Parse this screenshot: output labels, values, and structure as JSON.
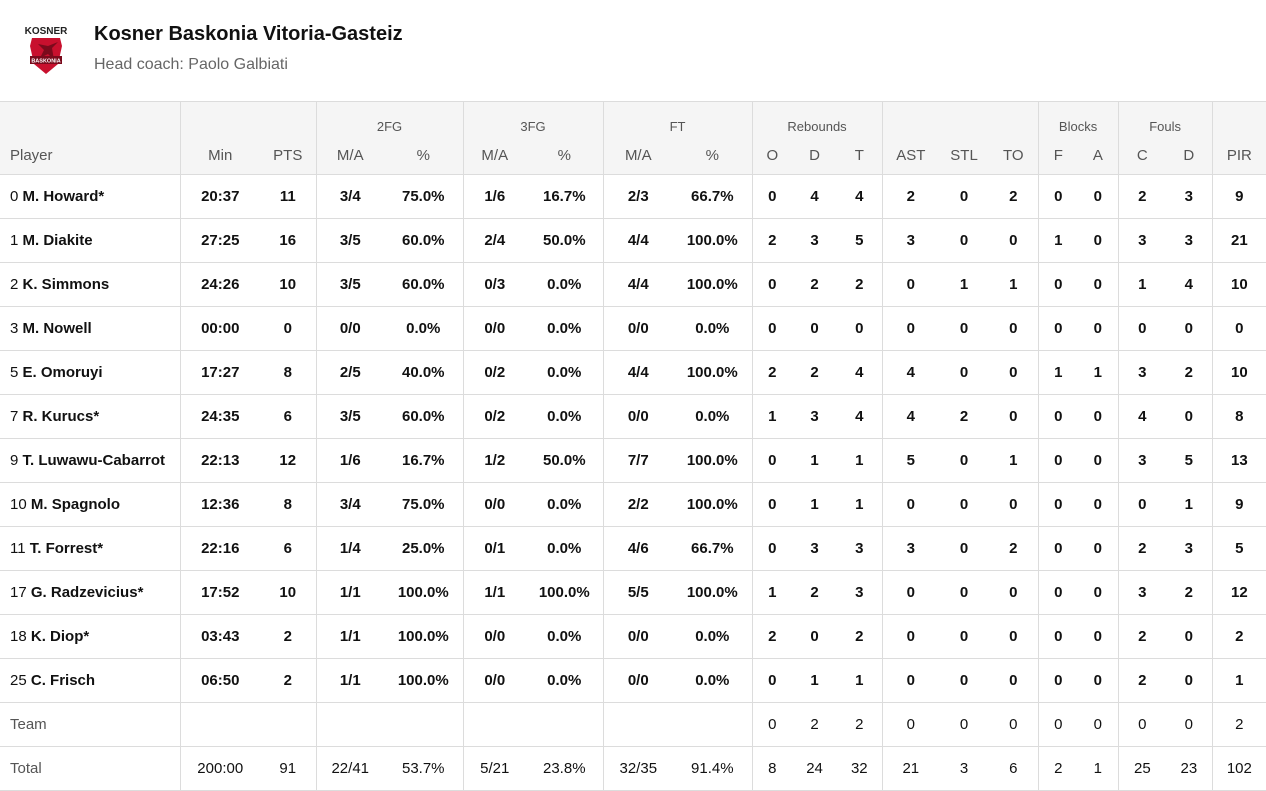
{
  "team": {
    "logo_text": "KOSNER",
    "logo_badge": "BASKONIA",
    "name": "Kosner Baskonia Vitoria-Gasteiz",
    "coach": "Head coach: Paolo Galbiati"
  },
  "colors": {
    "logo_red": "#c8102e",
    "header_bg": "#f5f5f5",
    "border": "#dcdcdc"
  },
  "groups": {
    "fg2": "2FG",
    "fg3": "3FG",
    "ft": "FT",
    "rebounds": "Rebounds",
    "blocks": "Blocks",
    "fouls": "Fouls"
  },
  "columns": {
    "player": "Player",
    "min": "Min",
    "pts": "PTS",
    "fg2_ma": "M/A",
    "fg2_pct": "%",
    "fg3_ma": "M/A",
    "fg3_pct": "%",
    "ft_ma": "M/A",
    "ft_pct": "%",
    "reb_o": "O",
    "reb_d": "D",
    "reb_t": "T",
    "ast": "AST",
    "stl": "STL",
    "to": "TO",
    "blk_f": "F",
    "blk_a": "A",
    "foul_c": "C",
    "foul_d": "D",
    "pir": "PIR"
  },
  "players": [
    {
      "number": "0",
      "name": "M. Howard*",
      "min": "20:37",
      "pts": "11",
      "fg2_ma": "3/4",
      "fg2_pct": "75.0%",
      "fg3_ma": "1/6",
      "fg3_pct": "16.7%",
      "ft_ma": "2/3",
      "ft_pct": "66.7%",
      "reb_o": "0",
      "reb_d": "4",
      "reb_t": "4",
      "ast": "2",
      "stl": "0",
      "to": "2",
      "blk_f": "0",
      "blk_a": "0",
      "foul_c": "2",
      "foul_d": "3",
      "pir": "9"
    },
    {
      "number": "1",
      "name": "M. Diakite",
      "min": "27:25",
      "pts": "16",
      "fg2_ma": "3/5",
      "fg2_pct": "60.0%",
      "fg3_ma": "2/4",
      "fg3_pct": "50.0%",
      "ft_ma": "4/4",
      "ft_pct": "100.0%",
      "reb_o": "2",
      "reb_d": "3",
      "reb_t": "5",
      "ast": "3",
      "stl": "0",
      "to": "0",
      "blk_f": "1",
      "blk_a": "0",
      "foul_c": "3",
      "foul_d": "3",
      "pir": "21"
    },
    {
      "number": "2",
      "name": "K. Simmons",
      "min": "24:26",
      "pts": "10",
      "fg2_ma": "3/5",
      "fg2_pct": "60.0%",
      "fg3_ma": "0/3",
      "fg3_pct": "0.0%",
      "ft_ma": "4/4",
      "ft_pct": "100.0%",
      "reb_o": "0",
      "reb_d": "2",
      "reb_t": "2",
      "ast": "0",
      "stl": "1",
      "to": "1",
      "blk_f": "0",
      "blk_a": "0",
      "foul_c": "1",
      "foul_d": "4",
      "pir": "10"
    },
    {
      "number": "3",
      "name": "M. Nowell",
      "min": "00:00",
      "pts": "0",
      "fg2_ma": "0/0",
      "fg2_pct": "0.0%",
      "fg3_ma": "0/0",
      "fg3_pct": "0.0%",
      "ft_ma": "0/0",
      "ft_pct": "0.0%",
      "reb_o": "0",
      "reb_d": "0",
      "reb_t": "0",
      "ast": "0",
      "stl": "0",
      "to": "0",
      "blk_f": "0",
      "blk_a": "0",
      "foul_c": "0",
      "foul_d": "0",
      "pir": "0"
    },
    {
      "number": "5",
      "name": "E. Omoruyi",
      "min": "17:27",
      "pts": "8",
      "fg2_ma": "2/5",
      "fg2_pct": "40.0%",
      "fg3_ma": "0/2",
      "fg3_pct": "0.0%",
      "ft_ma": "4/4",
      "ft_pct": "100.0%",
      "reb_o": "2",
      "reb_d": "2",
      "reb_t": "4",
      "ast": "4",
      "stl": "0",
      "to": "0",
      "blk_f": "1",
      "blk_a": "1",
      "foul_c": "3",
      "foul_d": "2",
      "pir": "10"
    },
    {
      "number": "7",
      "name": "R. Kurucs*",
      "min": "24:35",
      "pts": "6",
      "fg2_ma": "3/5",
      "fg2_pct": "60.0%",
      "fg3_ma": "0/2",
      "fg3_pct": "0.0%",
      "ft_ma": "0/0",
      "ft_pct": "0.0%",
      "reb_o": "1",
      "reb_d": "3",
      "reb_t": "4",
      "ast": "4",
      "stl": "2",
      "to": "0",
      "blk_f": "0",
      "blk_a": "0",
      "foul_c": "4",
      "foul_d": "0",
      "pir": "8"
    },
    {
      "number": "9",
      "name": "T. Luwawu-Cabarrot",
      "min": "22:13",
      "pts": "12",
      "fg2_ma": "1/6",
      "fg2_pct": "16.7%",
      "fg3_ma": "1/2",
      "fg3_pct": "50.0%",
      "ft_ma": "7/7",
      "ft_pct": "100.0%",
      "reb_o": "0",
      "reb_d": "1",
      "reb_t": "1",
      "ast": "5",
      "stl": "0",
      "to": "1",
      "blk_f": "0",
      "blk_a": "0",
      "foul_c": "3",
      "foul_d": "5",
      "pir": "13"
    },
    {
      "number": "10",
      "name": "M. Spagnolo",
      "min": "12:36",
      "pts": "8",
      "fg2_ma": "3/4",
      "fg2_pct": "75.0%",
      "fg3_ma": "0/0",
      "fg3_pct": "0.0%",
      "ft_ma": "2/2",
      "ft_pct": "100.0%",
      "reb_o": "0",
      "reb_d": "1",
      "reb_t": "1",
      "ast": "0",
      "stl": "0",
      "to": "0",
      "blk_f": "0",
      "blk_a": "0",
      "foul_c": "0",
      "foul_d": "1",
      "pir": "9"
    },
    {
      "number": "11",
      "name": "T. Forrest*",
      "min": "22:16",
      "pts": "6",
      "fg2_ma": "1/4",
      "fg2_pct": "25.0%",
      "fg3_ma": "0/1",
      "fg3_pct": "0.0%",
      "ft_ma": "4/6",
      "ft_pct": "66.7%",
      "reb_o": "0",
      "reb_d": "3",
      "reb_t": "3",
      "ast": "3",
      "stl": "0",
      "to": "2",
      "blk_f": "0",
      "blk_a": "0",
      "foul_c": "2",
      "foul_d": "3",
      "pir": "5"
    },
    {
      "number": "17",
      "name": "G. Radzevicius*",
      "min": "17:52",
      "pts": "10",
      "fg2_ma": "1/1",
      "fg2_pct": "100.0%",
      "fg3_ma": "1/1",
      "fg3_pct": "100.0%",
      "ft_ma": "5/5",
      "ft_pct": "100.0%",
      "reb_o": "1",
      "reb_d": "2",
      "reb_t": "3",
      "ast": "0",
      "stl": "0",
      "to": "0",
      "blk_f": "0",
      "blk_a": "0",
      "foul_c": "3",
      "foul_d": "2",
      "pir": "12"
    },
    {
      "number": "18",
      "name": "K. Diop*",
      "min": "03:43",
      "pts": "2",
      "fg2_ma": "1/1",
      "fg2_pct": "100.0%",
      "fg3_ma": "0/0",
      "fg3_pct": "0.0%",
      "ft_ma": "0/0",
      "ft_pct": "0.0%",
      "reb_o": "2",
      "reb_d": "0",
      "reb_t": "2",
      "ast": "0",
      "stl": "0",
      "to": "0",
      "blk_f": "0",
      "blk_a": "0",
      "foul_c": "2",
      "foul_d": "0",
      "pir": "2"
    },
    {
      "number": "25",
      "name": "C. Frisch",
      "min": "06:50",
      "pts": "2",
      "fg2_ma": "1/1",
      "fg2_pct": "100.0%",
      "fg3_ma": "0/0",
      "fg3_pct": "0.0%",
      "ft_ma": "0/0",
      "ft_pct": "0.0%",
      "reb_o": "0",
      "reb_d": "1",
      "reb_t": "1",
      "ast": "0",
      "stl": "0",
      "to": "0",
      "blk_f": "0",
      "blk_a": "0",
      "foul_c": "2",
      "foul_d": "0",
      "pir": "1"
    }
  ],
  "team_row": {
    "label": "Team",
    "min": "",
    "pts": "",
    "fg2_ma": "",
    "fg2_pct": "",
    "fg3_ma": "",
    "fg3_pct": "",
    "ft_ma": "",
    "ft_pct": "",
    "reb_o": "0",
    "reb_d": "2",
    "reb_t": "2",
    "ast": "0",
    "stl": "0",
    "to": "0",
    "blk_f": "0",
    "blk_a": "0",
    "foul_c": "0",
    "foul_d": "0",
    "pir": "2"
  },
  "total_row": {
    "label": "Total",
    "min": "200:00",
    "pts": "91",
    "fg2_ma": "22/41",
    "fg2_pct": "53.7%",
    "fg3_ma": "5/21",
    "fg3_pct": "23.8%",
    "ft_ma": "32/35",
    "ft_pct": "91.4%",
    "reb_o": "8",
    "reb_d": "24",
    "reb_t": "32",
    "ast": "21",
    "stl": "3",
    "to": "6",
    "blk_f": "2",
    "blk_a": "1",
    "foul_c": "25",
    "foul_d": "23",
    "pir": "102"
  }
}
